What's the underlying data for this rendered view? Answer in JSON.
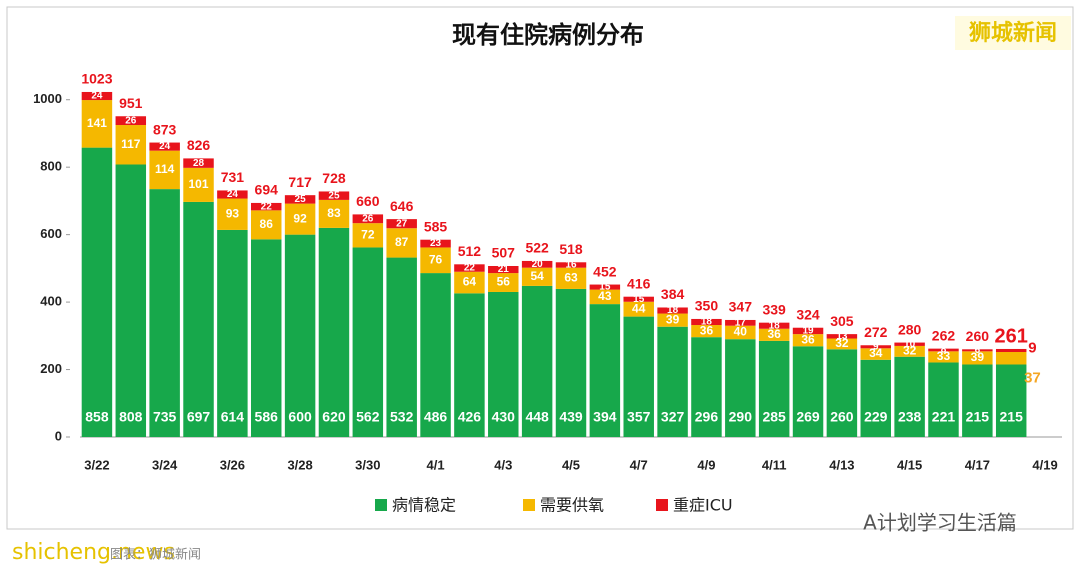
{
  "chart_data": {
    "type": "stacked-bar",
    "title": "现有住院病例分布",
    "categories": [
      "3/22",
      null,
      "3/24",
      null,
      "3/26",
      null,
      "3/28",
      null,
      "3/30",
      null,
      "4/1",
      null,
      "4/3",
      null,
      "4/5",
      null,
      "4/7",
      null,
      "4/9",
      null,
      "4/11",
      null,
      "4/13",
      null,
      "4/15",
      null,
      "4/17",
      null,
      "4/19"
    ],
    "series": [
      {
        "name": "病情稳定",
        "color": "#17a84b",
        "values": [
          858,
          808,
          735,
          697,
          614,
          586,
          600,
          620,
          562,
          532,
          486,
          426,
          430,
          448,
          439,
          394,
          357,
          327,
          296,
          290,
          285,
          269,
          260,
          229,
          238,
          221,
          215,
          215,
          null
        ]
      },
      {
        "name": "需要供氧",
        "color": "#f5b800",
        "values": [
          141,
          117,
          114,
          101,
          93,
          86,
          92,
          83,
          72,
          87,
          76,
          64,
          56,
          54,
          63,
          43,
          44,
          39,
          36,
          40,
          36,
          36,
          32,
          34,
          32,
          33,
          39,
          37,
          null
        ]
      },
      {
        "name": "重症ICU",
        "color": "#e8141c",
        "values": [
          24,
          26,
          24,
          28,
          24,
          22,
          25,
          25,
          26,
          27,
          23,
          22,
          21,
          20,
          16,
          15,
          15,
          18,
          18,
          17,
          18,
          19,
          13,
          9,
          10,
          8,
          6,
          9,
          null
        ]
      }
    ],
    "totals": [
      1023,
      951,
      873,
      826,
      731,
      694,
      717,
      728,
      660,
      646,
      585,
      512,
      507,
      522,
      518,
      452,
      416,
      384,
      350,
      347,
      339,
      324,
      305,
      272,
      280,
      262,
      260,
      261,
      null
    ],
    "ylim": [
      0,
      1100
    ],
    "yticks": [
      0,
      200,
      400,
      600,
      800,
      1000
    ],
    "grid": false,
    "legend": "bottom"
  },
  "watermarks": {
    "brand": "狮城新闻",
    "account": "A计划学习生活篇",
    "site": "shicheng.news",
    "source": "图表：狮城新闻"
  }
}
